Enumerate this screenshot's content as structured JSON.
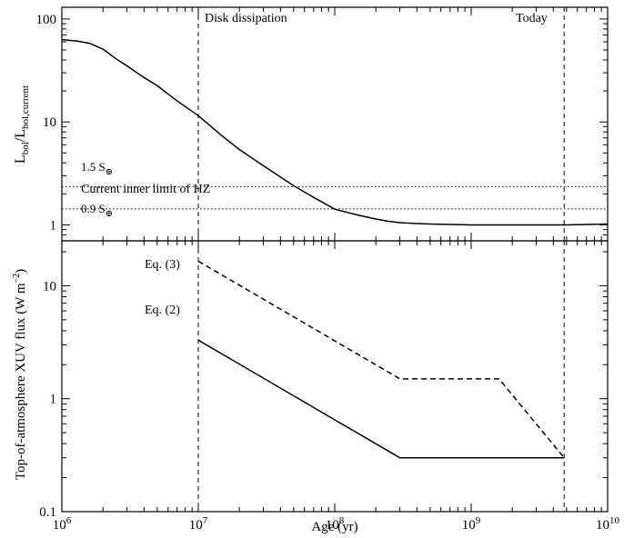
{
  "chart_data": [
    {
      "type": "line",
      "panel": "top",
      "ylabel_main": "L",
      "ylabel_sub1": "bol",
      "ylabel_mid": "/L",
      "ylabel_sub2": "bol,current",
      "xscale": "log",
      "yscale": "log",
      "xlim": [
        1000000,
        10000000000
      ],
      "ylim": [
        0.7,
        130
      ],
      "grid": false,
      "y_ticks": [
        {
          "value": 1,
          "label": "1"
        },
        {
          "value": 10,
          "label": "10"
        },
        {
          "value": 100,
          "label": "100"
        }
      ],
      "series": [
        {
          "style": "solid",
          "x": [
            1000000,
            1300000,
            1600000,
            2000000,
            2500000,
            3000000,
            4000000,
            5000000,
            7000000,
            10000000,
            15000000,
            20000000,
            30000000,
            50000000,
            70000000,
            100000000,
            150000000,
            200000000,
            250000000,
            300000000,
            400000000,
            500000000,
            700000000,
            1000000000,
            2000000000,
            5000000000,
            10000000000
          ],
          "y": [
            63,
            61,
            58,
            51,
            41,
            35,
            27,
            22.5,
            16,
            11.5,
            7.3,
            5.4,
            3.75,
            2.4,
            1.85,
            1.42,
            1.24,
            1.14,
            1.08,
            1.05,
            1.03,
            1.02,
            1.01,
            1.0,
            1.0,
            1.0,
            1.02
          ]
        }
      ],
      "hlines": [
        {
          "y": 2.35,
          "style": "dotted",
          "label": "1.5 S",
          "label_sub": "⊕"
        },
        {
          "y": 1.43,
          "style": "dotted",
          "label": "0.9 S",
          "label_sub": "⊕"
        }
      ],
      "hz_label": "Current inner limit of HZ",
      "vlines": [
        {
          "x": 10000000,
          "style": "dashed",
          "label": "Disk dissipation"
        },
        {
          "x": 4800000000,
          "style": "dashed",
          "label": "Today"
        }
      ]
    },
    {
      "type": "line",
      "panel": "bottom",
      "ylabel": "Top-of-atmosphere XUV flux (W m",
      "ylabel_sup": "−2",
      "ylabel_end": ")",
      "xlabel": "Age (yr)",
      "xscale": "log",
      "yscale": "log",
      "xlim": [
        1000000,
        10000000000
      ],
      "ylim": [
        0.1,
        25
      ],
      "grid": false,
      "x_ticks": [
        {
          "value": 1000000,
          "base": "10",
          "exp": "6"
        },
        {
          "value": 10000000,
          "base": "10",
          "exp": "7"
        },
        {
          "value": 100000000,
          "base": "10",
          "exp": "8"
        },
        {
          "value": 1000000000,
          "base": "10",
          "exp": "9"
        },
        {
          "value": 10000000000,
          "base": "10",
          "exp": "10"
        }
      ],
      "y_ticks": [
        {
          "value": 0.1,
          "label": "0.1"
        },
        {
          "value": 1,
          "label": "1"
        },
        {
          "value": 10,
          "label": "10"
        }
      ],
      "series": [
        {
          "label": "Eq. (3)",
          "style": "dashed",
          "x": [
            10000000,
            300000000,
            1600000000,
            4800000000
          ],
          "y": [
            16.5,
            1.5,
            1.5,
            0.3
          ]
        },
        {
          "label": "Eq. (2)",
          "style": "solid",
          "x": [
            10000000,
            300000000,
            4800000000
          ],
          "y": [
            3.3,
            0.3,
            0.3
          ]
        }
      ],
      "vlines": [
        {
          "x": 10000000,
          "style": "dashed"
        },
        {
          "x": 4800000000,
          "style": "dashed"
        }
      ]
    }
  ]
}
